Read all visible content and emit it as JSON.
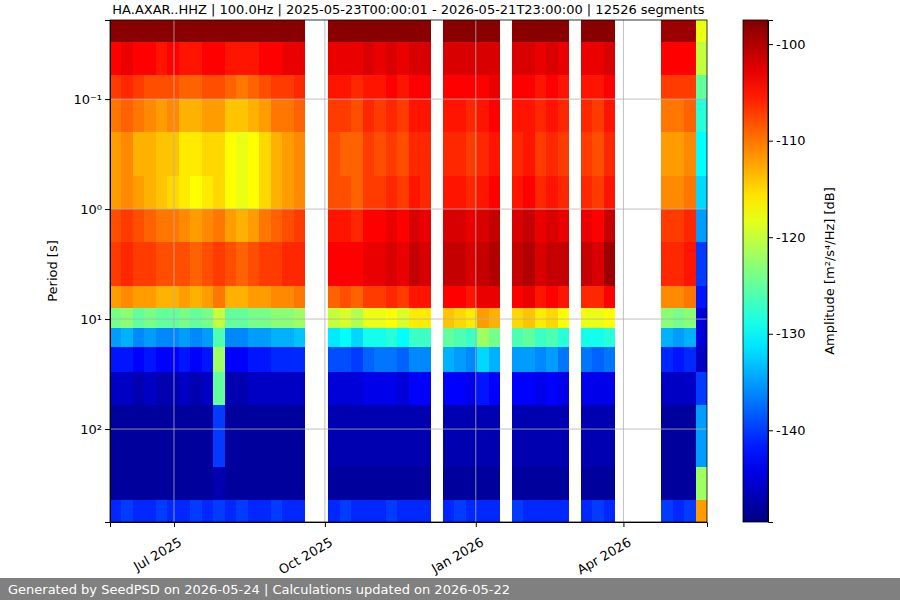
{
  "chart_data": {
    "type": "heatmap",
    "title": "HA.AXAR..HHZ | 100.0Hz | 2025-05-23T00:00:01 - 2026-05-21T23:00:00 | 12526 segments",
    "y_label": "Period [s]",
    "footer": "Generated by SeedPSD on 2026-05-24 | Calculations updated on 2026-05-22",
    "log": "y",
    "grid": true,
    "xlim": [
      "2025-05-23T00:00:01",
      "2026-05-21T23:00:00"
    ],
    "xticks": [
      {
        "value": "2025-07-01",
        "label": "Jul 2025"
      },
      {
        "value": "2025-10-01",
        "label": "Oct 2025"
      },
      {
        "value": "2026-01-01",
        "label": "Jan 2026"
      },
      {
        "value": "2026-04-01",
        "label": "Apr 2026"
      }
    ],
    "ylim": [
      0.0191,
      700
    ],
    "yticks": [
      {
        "value": 0.1,
        "label": "10⁻¹"
      },
      {
        "value": 1,
        "label": "10⁰"
      },
      {
        "value": 10,
        "label": "10¹"
      },
      {
        "value": 100,
        "label": "10²"
      }
    ],
    "x_edges": [
      "2025-05-23T00:00:01",
      "2025-05-30",
      "2025-06-06",
      "2025-06-13",
      "2025-06-20",
      "2025-06-27",
      "2025-07-04",
      "2025-07-11",
      "2025-07-18",
      "2025-07-25",
      "2025-08-01",
      "2025-08-08",
      "2025-08-15",
      "2025-08-22",
      "2025-08-29",
      "2025-09-05",
      "2025-09-12",
      "2025-09-19",
      "2025-09-26",
      "2025-10-03",
      "2025-10-10",
      "2025-10-17",
      "2025-10-24",
      "2025-10-31",
      "2025-11-07",
      "2025-11-14",
      "2025-11-21",
      "2025-11-28",
      "2025-12-05",
      "2025-12-12",
      "2025-12-19",
      "2025-12-26",
      "2026-01-02",
      "2026-01-09",
      "2026-01-16",
      "2026-01-23",
      "2026-01-30",
      "2026-02-06",
      "2026-02-13",
      "2026-02-20",
      "2026-02-27",
      "2026-03-06",
      "2026-03-13",
      "2026-03-20",
      "2026-03-27",
      "2026-04-03",
      "2026-04-10",
      "2026-04-17",
      "2026-04-24",
      "2026-05-01",
      "2026-05-08",
      "2026-05-15",
      "2026-05-21T23:00:00"
    ],
    "y_edges": [
      0.0191,
      0.03,
      0.06,
      0.1,
      0.2,
      0.5,
      1,
      2,
      5,
      8,
      12,
      18,
      30,
      60,
      220,
      440,
      700
    ],
    "values": [
      [
        -98,
        -104,
        -107,
        -110,
        -112,
        -112,
        -108,
        -107,
        -112,
        -124,
        -135,
        -142,
        -146,
        -148,
        -148,
        -141
      ],
      [
        -98,
        -103,
        -106,
        -109,
        -111,
        -111,
        -107,
        -106,
        -111,
        -123,
        -134,
        -142,
        -146,
        -148,
        -148,
        -140
      ],
      [
        -98,
        -104,
        -107,
        -110,
        -113,
        -112,
        -108,
        -107,
        -112,
        -125,
        -136,
        -143,
        -147,
        -148,
        -148,
        -141
      ],
      [
        -98,
        -104,
        -108,
        -111,
        -113,
        -113,
        -109,
        -107,
        -112,
        -124,
        -135,
        -142,
        -146,
        -148,
        -148,
        -141
      ],
      [
        -98,
        -105,
        -108,
        -112,
        -114,
        -114,
        -110,
        -108,
        -113,
        -125,
        -136,
        -143,
        -147,
        -148,
        -148,
        -140
      ],
      [
        -98,
        -104,
        -108,
        -111,
        -114,
        -115,
        -110,
        -108,
        -113,
        -125,
        -136,
        -143,
        -147,
        -148,
        -148,
        -141
      ],
      [
        -98,
        -105,
        -109,
        -113,
        -116,
        -116,
        -111,
        -108,
        -112,
        -124,
        -135,
        -142,
        -146,
        -148,
        -148,
        -141
      ],
      [
        -98,
        -105,
        -109,
        -113,
        -116,
        -117,
        -112,
        -109,
        -113,
        -125,
        -136,
        -143,
        -147,
        -148,
        -148,
        -140
      ],
      [
        -98,
        -104,
        -108,
        -112,
        -115,
        -116,
        -111,
        -108,
        -112,
        -124,
        -135,
        -142,
        -146,
        -148,
        -148,
        -141
      ],
      [
        -98,
        -104,
        -108,
        -112,
        -115,
        -115,
        -110,
        -107,
        -110,
        -120,
        -126,
        -122,
        -125,
        -140,
        -147,
        -140
      ],
      [
        -98,
        -105,
        -109,
        -114,
        -117,
        -117,
        -112,
        -108,
        -113,
        -125,
        -136,
        -143,
        -147,
        -148,
        -148,
        -141
      ],
      [
        -98,
        -105,
        -110,
        -114,
        -118,
        -118,
        -113,
        -109,
        -113,
        -125,
        -136,
        -143,
        -147,
        -148,
        -148,
        -140
      ],
      [
        -98,
        -105,
        -109,
        -113,
        -117,
        -117,
        -112,
        -108,
        -112,
        -124,
        -135,
        -142,
        -146,
        -148,
        -148,
        -141
      ],
      [
        -98,
        -104,
        -108,
        -112,
        -115,
        -115,
        -110,
        -107,
        -112,
        -124,
        -135,
        -142,
        -146,
        -148,
        -148,
        -141
      ],
      [
        -98,
        -104,
        -107,
        -110,
        -113,
        -113,
        -109,
        -107,
        -111,
        -123,
        -134,
        -141,
        -146,
        -148,
        -148,
        -140
      ],
      [
        -98,
        -103,
        -107,
        -110,
        -112,
        -112,
        -108,
        -106,
        -111,
        -123,
        -134,
        -141,
        -146,
        -148,
        -148,
        -141
      ],
      [
        -98,
        -103,
        -106,
        -109,
        -111,
        -111,
        -107,
        -106,
        -110,
        -122,
        -133,
        -141,
        -146,
        -148,
        -148,
        -141
      ],
      null,
      null,
      [
        -98,
        -103,
        -105,
        -107,
        -108,
        -108,
        -105,
        -104,
        -109,
        -120,
        -131,
        -139,
        -145,
        -147,
        -148,
        -141
      ],
      [
        -98,
        -103,
        -105,
        -107,
        -109,
        -108,
        -105,
        -104,
        -108,
        -119,
        -130,
        -139,
        -145,
        -147,
        -148,
        -140
      ],
      [
        -98,
        -103,
        -106,
        -108,
        -109,
        -109,
        -106,
        -104,
        -109,
        -121,
        -132,
        -140,
        -145,
        -147,
        -148,
        -141
      ],
      [
        -98,
        -102,
        -105,
        -106,
        -107,
        -107,
        -104,
        -103,
        -107,
        -118,
        -129,
        -138,
        -144,
        -147,
        -148,
        -141
      ],
      [
        -98,
        -103,
        -105,
        -107,
        -108,
        -107,
        -104,
        -103,
        -107,
        -118,
        -129,
        -137,
        -144,
        -147,
        -148,
        -141
      ],
      [
        -98,
        -102,
        -104,
        -106,
        -107,
        -106,
        -103,
        -102,
        -106,
        -117,
        -128,
        -137,
        -144,
        -147,
        -148,
        -140
      ],
      [
        -98,
        -103,
        -105,
        -107,
        -108,
        -107,
        -104,
        -103,
        -107,
        -119,
        -130,
        -138,
        -145,
        -147,
        -148,
        -141
      ],
      [
        -98,
        -102,
        -104,
        -105,
        -106,
        -105,
        -102,
        -101,
        -105,
        -116,
        -127,
        -136,
        -143,
        -147,
        -148,
        -141
      ],
      [
        -98,
        -102,
        -104,
        -105,
        -106,
        -106,
        -103,
        -102,
        -105,
        -116,
        -127,
        -136,
        -143,
        -147,
        -148,
        -141
      ],
      null,
      [
        -98,
        -102,
        -104,
        -105,
        -106,
        -105,
        -102,
        -101,
        -104,
        -114,
        -125,
        -134,
        -143,
        -147,
        -148,
        -141
      ],
      [
        -98,
        -102,
        -104,
        -105,
        -106,
        -105,
        -102,
        -101,
        -104,
        -115,
        -126,
        -135,
        -143,
        -147,
        -148,
        -140
      ],
      [
        -98,
        -102,
        -104,
        -106,
        -107,
        -106,
        -103,
        -102,
        -105,
        -116,
        -127,
        -136,
        -144,
        -147,
        -148,
        -141
      ],
      [
        -98,
        -102,
        -104,
        -105,
        -106,
        -105,
        -102,
        -101,
        -103,
        -112,
        -122,
        -132,
        -142,
        -147,
        -148,
        -141
      ],
      [
        -98,
        -102,
        -103,
        -104,
        -105,
        -104,
        -101,
        -100,
        -103,
        -113,
        -124,
        -134,
        -143,
        -147,
        -148,
        -141
      ],
      null,
      [
        -98,
        -102,
        -104,
        -105,
        -106,
        -105,
        -102,
        -101,
        -104,
        -115,
        -126,
        -135,
        -143,
        -147,
        -148,
        -140
      ],
      [
        -98,
        -102,
        -104,
        -105,
        -105,
        -104,
        -101,
        -100,
        -103,
        -114,
        -125,
        -135,
        -143,
        -147,
        -148,
        -141
      ],
      [
        -98,
        -103,
        -105,
        -106,
        -107,
        -106,
        -103,
        -102,
        -105,
        -116,
        -127,
        -136,
        -144,
        -147,
        -148,
        -141
      ],
      [
        -98,
        -102,
        -104,
        -105,
        -106,
        -105,
        -102,
        -101,
        -104,
        -115,
        -126,
        -135,
        -143,
        -147,
        -148,
        -141
      ],
      [
        -98,
        -103,
        -105,
        -106,
        -107,
        -106,
        -103,
        -101,
        -105,
        -117,
        -128,
        -137,
        -144,
        -147,
        -148,
        -141
      ],
      null,
      [
        -98,
        -103,
        -105,
        -106,
        -107,
        -106,
        -103,
        -101,
        -106,
        -118,
        -129,
        -137,
        -144,
        -147,
        -148,
        -141
      ],
      [
        -98,
        -103,
        -105,
        -107,
        -108,
        -107,
        -104,
        -102,
        -106,
        -118,
        -129,
        -138,
        -144,
        -147,
        -148,
        -140
      ],
      [
        -98,
        -102,
        -104,
        -105,
        -106,
        -105,
        -101,
        -99,
        -104,
        -117,
        -128,
        -137,
        -144,
        -147,
        -148,
        -141
      ],
      null,
      null,
      null,
      null,
      [
        -99,
        -104,
        -107,
        -110,
        -112,
        -111,
        -107,
        -106,
        -111,
        -123,
        -134,
        -141,
        -146,
        -148,
        -148,
        -140
      ],
      [
        -99,
        -104,
        -107,
        -110,
        -112,
        -111,
        -107,
        -106,
        -111,
        -124,
        -135,
        -142,
        -146,
        -148,
        -148,
        -141
      ],
      [
        -99,
        -104,
        -107,
        -109,
        -111,
        -110,
        -106,
        -105,
        -110,
        -123,
        -134,
        -141,
        -146,
        -148,
        -148,
        -140
      ],
      [
        -118,
        -120,
        -125,
        -128,
        -130,
        -132,
        -135,
        -140,
        -142,
        -145,
        -145,
        -146,
        -140,
        -135,
        -122,
        -112
      ]
    ],
    "colorbar": {
      "label": "Amplitude [m²/s⁴/Hz] [dB]",
      "range": [
        -149.5,
        -97.5
      ],
      "ticks": [
        -140,
        -130,
        -120,
        -110,
        -100
      ]
    }
  }
}
